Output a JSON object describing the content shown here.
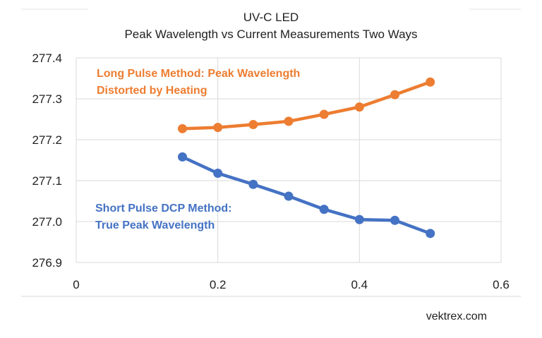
{
  "chart_data": {
    "type": "line",
    "title": "UV-C LED",
    "subtitle": "Peak Wavelength vs Current Measurements Two Ways",
    "xlabel": "",
    "ylabel": "",
    "xlim": [
      0,
      0.6
    ],
    "ylim": [
      276.9,
      277.4
    ],
    "xticks": [
      "0",
      "0.2",
      "0.4",
      "0.6"
    ],
    "yticks": [
      "276.9",
      "277.0",
      "277.1",
      "277.2",
      "277.3",
      "277.4"
    ],
    "grid": true,
    "series": [
      {
        "name": "Long Pulse Method",
        "color": "#ED7D31",
        "x": [
          0.15,
          0.2,
          0.25,
          0.3,
          0.35,
          0.4,
          0.45,
          0.5
        ],
        "values": [
          277.227,
          277.23,
          277.237,
          277.245,
          277.262,
          277.28,
          277.31,
          277.341
        ],
        "annotation": [
          "Long Pulse Method: Peak Wavelength",
          "Distorted by Heating"
        ]
      },
      {
        "name": "Short Pulse DCP Method",
        "color": "#4472C4",
        "x": [
          0.15,
          0.2,
          0.25,
          0.3,
          0.35,
          0.4,
          0.45,
          0.5
        ],
        "values": [
          277.158,
          277.118,
          277.091,
          277.062,
          277.03,
          277.005,
          277.003,
          276.971
        ],
        "annotation": [
          "Short Pulse DCP Method:",
          "True Peak Wavelength"
        ]
      }
    ]
  },
  "source": "vektrex.com"
}
